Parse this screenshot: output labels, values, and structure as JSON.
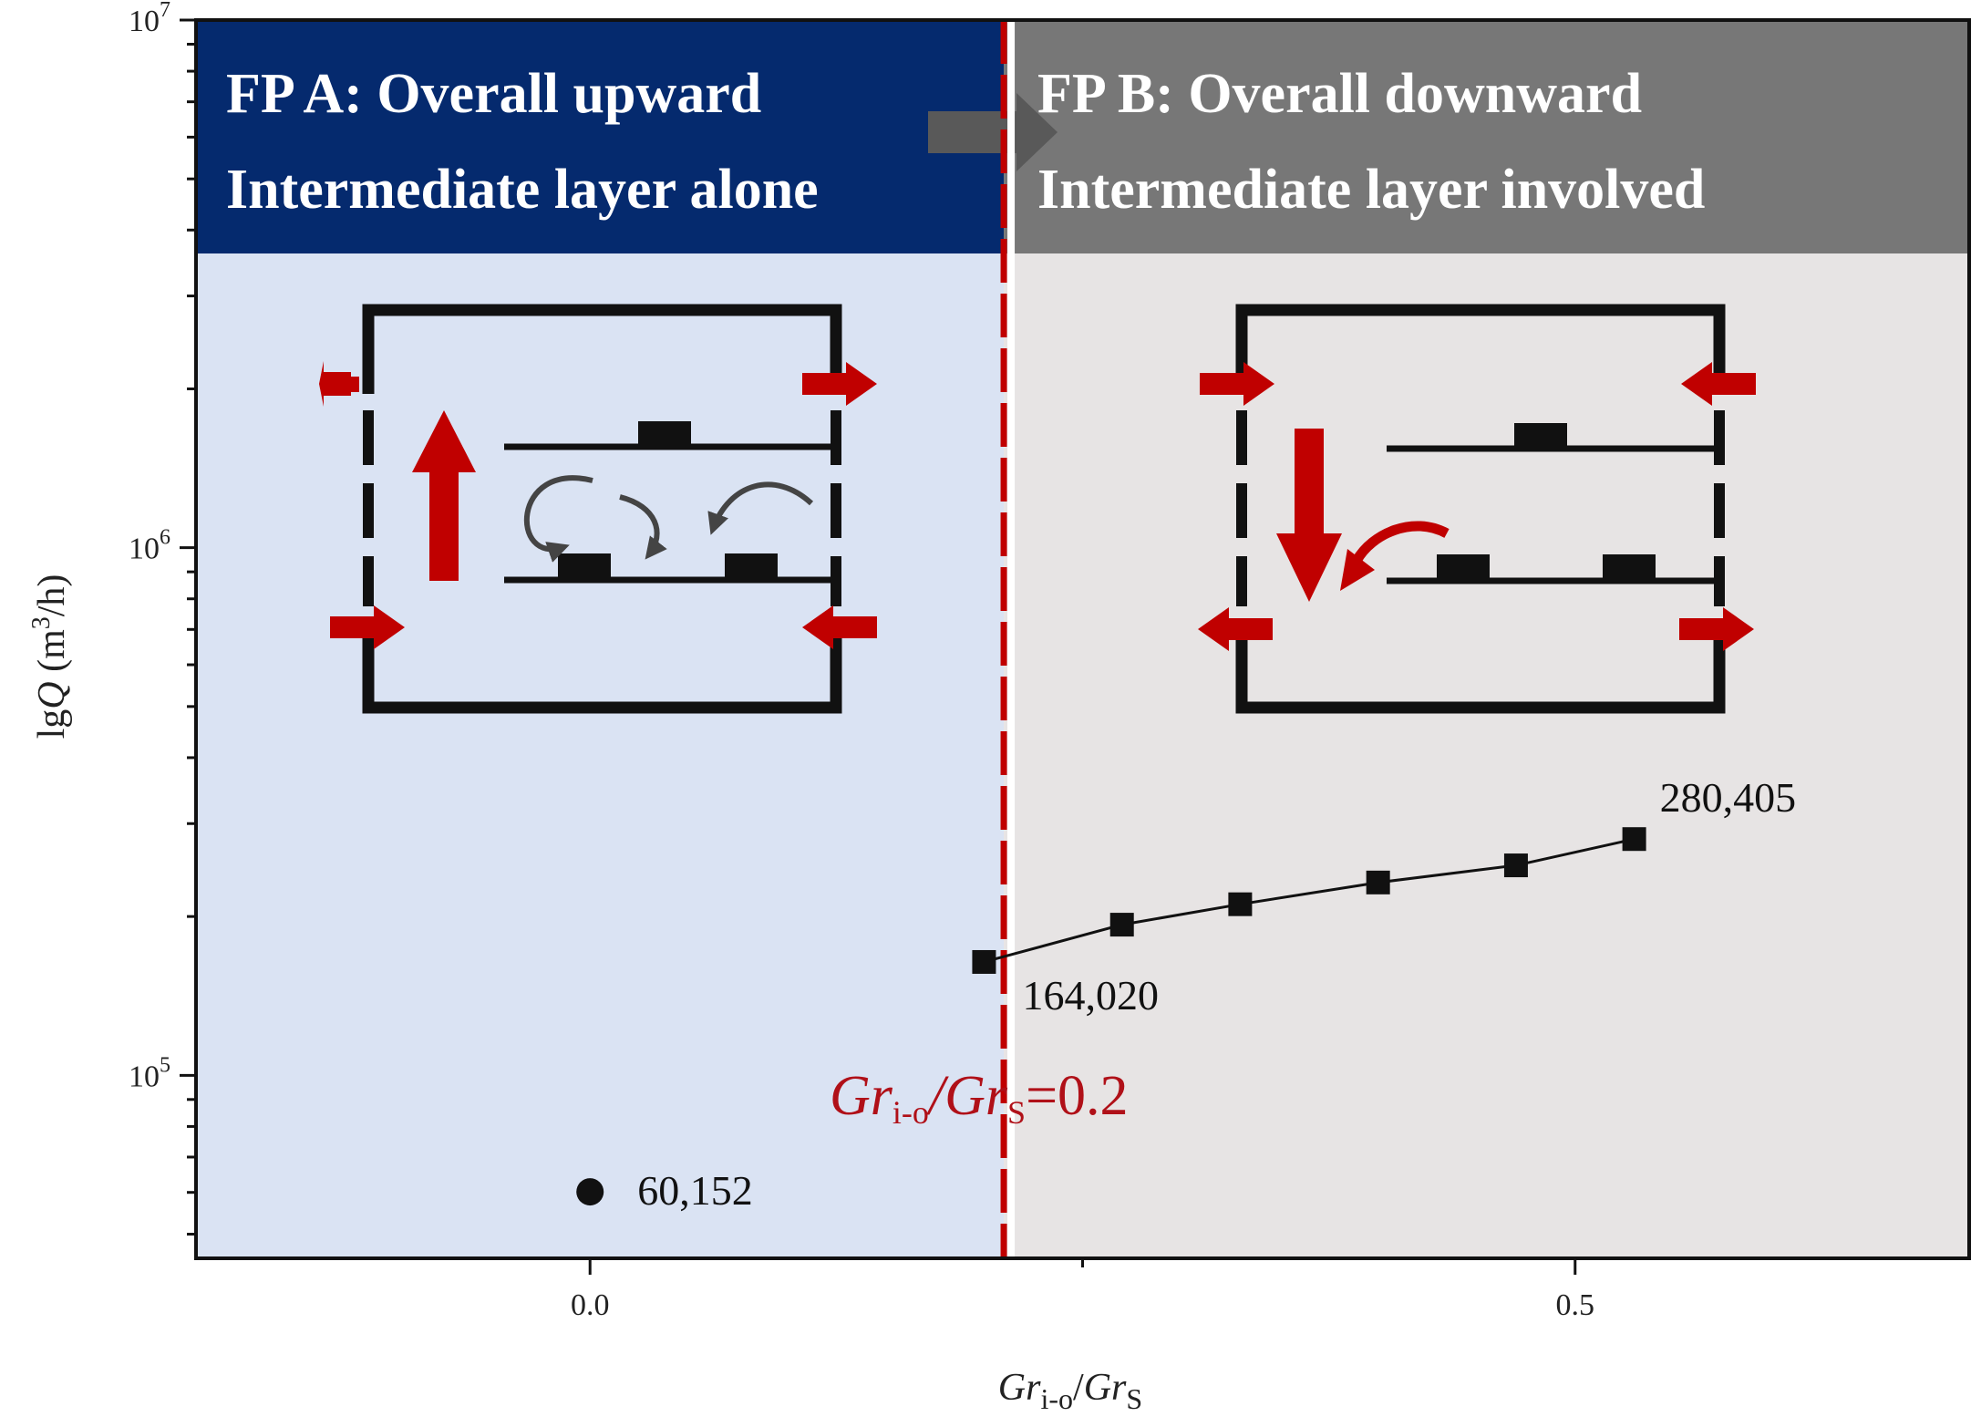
{
  "chart_data": {
    "type": "scatter",
    "xlabel": {
      "main": "Gr",
      "sub1": "i-o",
      "slash": "/",
      "main2": "Gr",
      "sub2": "S"
    },
    "ylabel": {
      "prefix": "lg",
      "var": "Q",
      "unit_pre": " (m",
      "unit_exp": "3",
      "unit_post": "/h)"
    },
    "y_scale": "log",
    "xlim": [
      -0.2,
      0.7
    ],
    "ylim": [
      45000,
      10000000
    ],
    "x_ticks": [
      {
        "value": 0.0,
        "label": "0.0"
      },
      {
        "value": 0.5,
        "label": "0.5"
      }
    ],
    "x_minor_ticks": [
      0.25
    ],
    "y_ticks": [
      {
        "value": 100000,
        "base": "10",
        "exp": "5"
      },
      {
        "value": 1000000,
        "base": "10",
        "exp": "6"
      },
      {
        "value": 10000000,
        "base": "10",
        "exp": "7"
      }
    ],
    "threshold": {
      "x": 0.21,
      "label_parts": {
        "a": "Gr",
        "a_sub": "i-o",
        "slash": "/",
        "b": "Gr",
        "b_sub": "S",
        "tail": "=0.2"
      }
    },
    "regions": [
      {
        "name": "FP A",
        "x_range": [
          -0.2,
          0.21
        ],
        "line1": "FP A:  Overall upward",
        "line2": "Intermediate layer alone",
        "banner_color": "#052a6e",
        "fill_color": "#dae3f3"
      },
      {
        "name": "FP B",
        "x_range": [
          0.21,
          0.7
        ],
        "line1": "FP B:  Overall downward",
        "line2": "Intermediate layer involved",
        "banner_color": "#777777",
        "fill_color": "#e7e4e4"
      }
    ],
    "series": [
      {
        "marker": "circle",
        "connected": false,
        "points": [
          {
            "x": 0.0,
            "y": 60152,
            "label": "60,152"
          }
        ]
      },
      {
        "marker": "square",
        "connected": true,
        "points": [
          {
            "x": 0.2,
            "y": 164020,
            "label": "164,020"
          },
          {
            "x": 0.27,
            "y": 193000,
            "label": ""
          },
          {
            "x": 0.33,
            "y": 211000,
            "label": ""
          },
          {
            "x": 0.4,
            "y": 232000,
            "label": ""
          },
          {
            "x": 0.47,
            "y": 250000,
            "label": ""
          },
          {
            "x": 0.53,
            "y": 280405,
            "label": "280,405"
          }
        ]
      }
    ],
    "colors": {
      "accent_red": "#c00000",
      "arrow_gray": "#555555",
      "axis": "#111111"
    },
    "icons": [
      "fp-a-schematic-icon",
      "fp-b-schematic-icon",
      "transition-arrow-icon"
    ]
  }
}
